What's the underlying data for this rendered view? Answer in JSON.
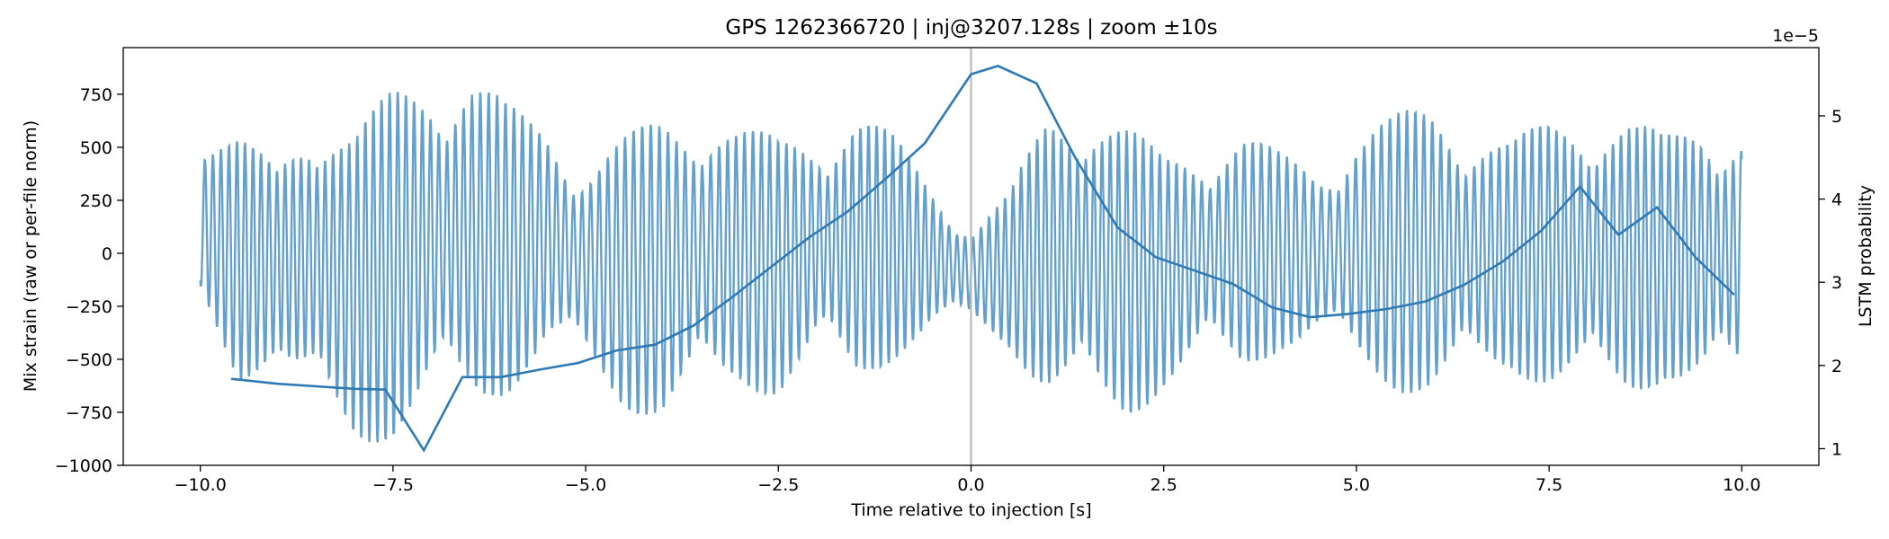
{
  "chart_data": {
    "type": "line",
    "title": "GPS 1262366720 | inj@3207.128s | zoom ±10s",
    "xlabel": "Time relative to injection [s]",
    "ylabel": "Mix strain (raw or per-file norm)",
    "y2label": "LSTM probability",
    "y2_offset_text": "1e−5",
    "xlim": [
      -11.0,
      11.0
    ],
    "ylim": [
      -1000,
      970
    ],
    "y2lim": [
      8e-06,
      5.82e-05
    ],
    "x_ticks": [
      -10.0,
      -7.5,
      -5.0,
      -2.5,
      0.0,
      2.5,
      5.0,
      7.5,
      10.0
    ],
    "x_tick_labels": [
      "−10.0",
      "−7.5",
      "−5.0",
      "−2.5",
      "0.0",
      "2.5",
      "5.0",
      "7.5",
      "10.0"
    ],
    "y_ticks": [
      -1000,
      -750,
      -500,
      -250,
      0,
      250,
      500,
      750
    ],
    "y_tick_labels": [
      "−1000",
      "−750",
      "−500",
      "−250",
      "0",
      "250",
      "500",
      "750"
    ],
    "y2_ticks": [
      1e-05,
      2e-05,
      3e-05,
      4e-05,
      5e-05
    ],
    "y2_tick_labels": [
      "1",
      "2",
      "3",
      "4",
      "5"
    ],
    "injection_marker_x": 0.0,
    "grid": false,
    "colors": {
      "strain": "#5b9bc9",
      "probability": "#2f7ab5",
      "marker": "#bbbbbb"
    },
    "series": [
      {
        "axis": "left",
        "x": [
          -10.0,
          -9.5,
          -9.0,
          -8.5,
          -8.0,
          -7.5,
          -7.0,
          -6.5,
          -6.0,
          -5.5,
          -5.0,
          -4.5,
          -4.0,
          -3.5,
          -3.0,
          -2.5,
          -2.0,
          -1.5,
          -1.0,
          -0.5,
          0.0,
          0.5,
          1.0,
          1.5,
          2.0,
          2.5,
          3.0,
          3.5,
          4.0,
          4.5,
          5.0,
          5.5,
          6.0,
          6.5,
          7.0,
          7.5,
          8.0,
          8.5,
          9.0,
          9.5,
          10.0
        ],
        "envelope": [
          580,
          550,
          420,
          760,
          600,
          780,
          870,
          900,
          700,
          620,
          450,
          560,
          660,
          720,
          610,
          550,
          610,
          690,
          560,
          340,
          130,
          290,
          680,
          760,
          620,
          470,
          540,
          590,
          480,
          420,
          600,
          660,
          720,
          630,
          540,
          640,
          700,
          660,
          560,
          680,
          620
        ],
        "lows": [
          -300,
          -620,
          -480,
          -800,
          -920,
          -880,
          -740,
          -760,
          -660,
          -470,
          -560,
          -740,
          -800,
          -700,
          -640,
          -680,
          -520,
          -640,
          -500,
          -380,
          -330,
          -450,
          -700,
          -760,
          -800,
          -650,
          -540,
          -580,
          -460,
          -420,
          -560,
          -650,
          -700,
          -620,
          -560,
          -640,
          -680,
          -700,
          -600,
          -680,
          -640
        ]
      },
      {
        "axis": "right",
        "x": [
          -9.6,
          -9.0,
          -8.5,
          -8.0,
          -7.6,
          -7.1,
          -6.6,
          -6.1,
          -5.6,
          -5.1,
          -4.6,
          -4.1,
          -3.6,
          -3.1,
          -2.6,
          -2.1,
          -1.6,
          -1.1,
          -0.6,
          0.0,
          0.35,
          0.85,
          1.35,
          1.9,
          2.4,
          2.9,
          3.4,
          3.9,
          4.4,
          4.9,
          5.4,
          5.9,
          6.4,
          6.9,
          7.4,
          7.9,
          8.4,
          8.9,
          9.4,
          9.9
        ],
        "values": [
          1.84e-05,
          1.78e-05,
          1.75e-05,
          1.72e-05,
          1.71e-05,
          9.8e-06,
          1.86e-05,
          1.86e-05,
          1.95e-05,
          2.03e-05,
          2.18e-05,
          2.25e-05,
          2.48e-05,
          2.82e-05,
          3.18e-05,
          3.54e-05,
          3.85e-05,
          4.25e-05,
          4.67e-05,
          5.5e-05,
          5.6e-05,
          5.39e-05,
          4.5e-05,
          3.66e-05,
          3.3e-05,
          3.14e-05,
          2.98e-05,
          2.7e-05,
          2.58e-05,
          2.62e-05,
          2.68e-05,
          2.77e-05,
          2.97e-05,
          3.25e-05,
          3.62e-05,
          4.15e-05,
          3.57e-05,
          3.9e-05,
          3.3e-05,
          2.85e-05
        ]
      }
    ]
  }
}
